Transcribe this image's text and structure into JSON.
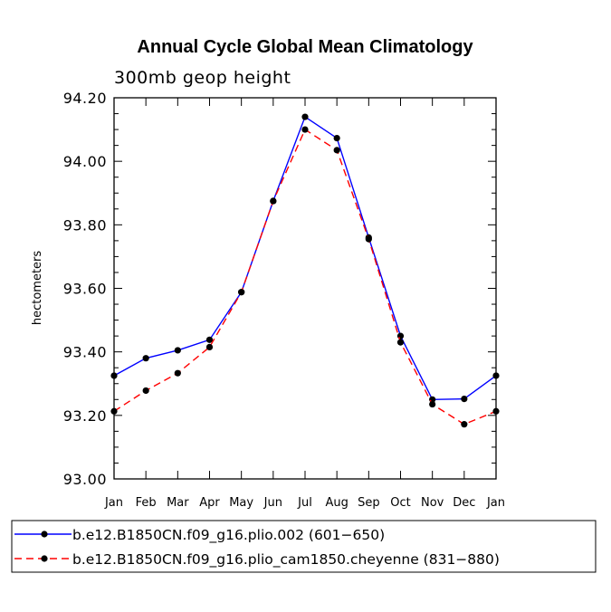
{
  "chart_data": {
    "type": "line",
    "title": "Annual Cycle Global Mean Climatology",
    "subtitle": "300mb geop height",
    "xlabel": "",
    "ylabel": "hectometers",
    "categories": [
      "Jan",
      "Feb",
      "Mar",
      "Apr",
      "May",
      "Jun",
      "Jul",
      "Aug",
      "Sep",
      "Oct",
      "Nov",
      "Dec",
      "Jan"
    ],
    "ylim": [
      93.0,
      94.2
    ],
    "yticks": [
      "93.00",
      "93.20",
      "93.40",
      "93.60",
      "93.80",
      "94.00",
      "94.20"
    ],
    "series": [
      {
        "name": "b.e12.B1850CN.f09_g16.plio.002 (601−650)",
        "color": "#0000ff",
        "dash": "solid",
        "values": [
          93.325,
          93.38,
          93.405,
          93.438,
          93.588,
          93.875,
          94.14,
          94.073,
          93.76,
          93.45,
          93.25,
          93.252,
          93.325
        ]
      },
      {
        "name": "b.e12.B1850CN.f09_g16.plio_cam1850.cheyenne (831−880)",
        "color": "#ff0000",
        "dash": "dashed",
        "values": [
          93.213,
          93.278,
          93.333,
          93.415,
          93.588,
          93.875,
          94.1,
          94.035,
          93.755,
          93.43,
          93.235,
          93.172,
          93.213
        ]
      }
    ],
    "legend_position": "bottom"
  }
}
